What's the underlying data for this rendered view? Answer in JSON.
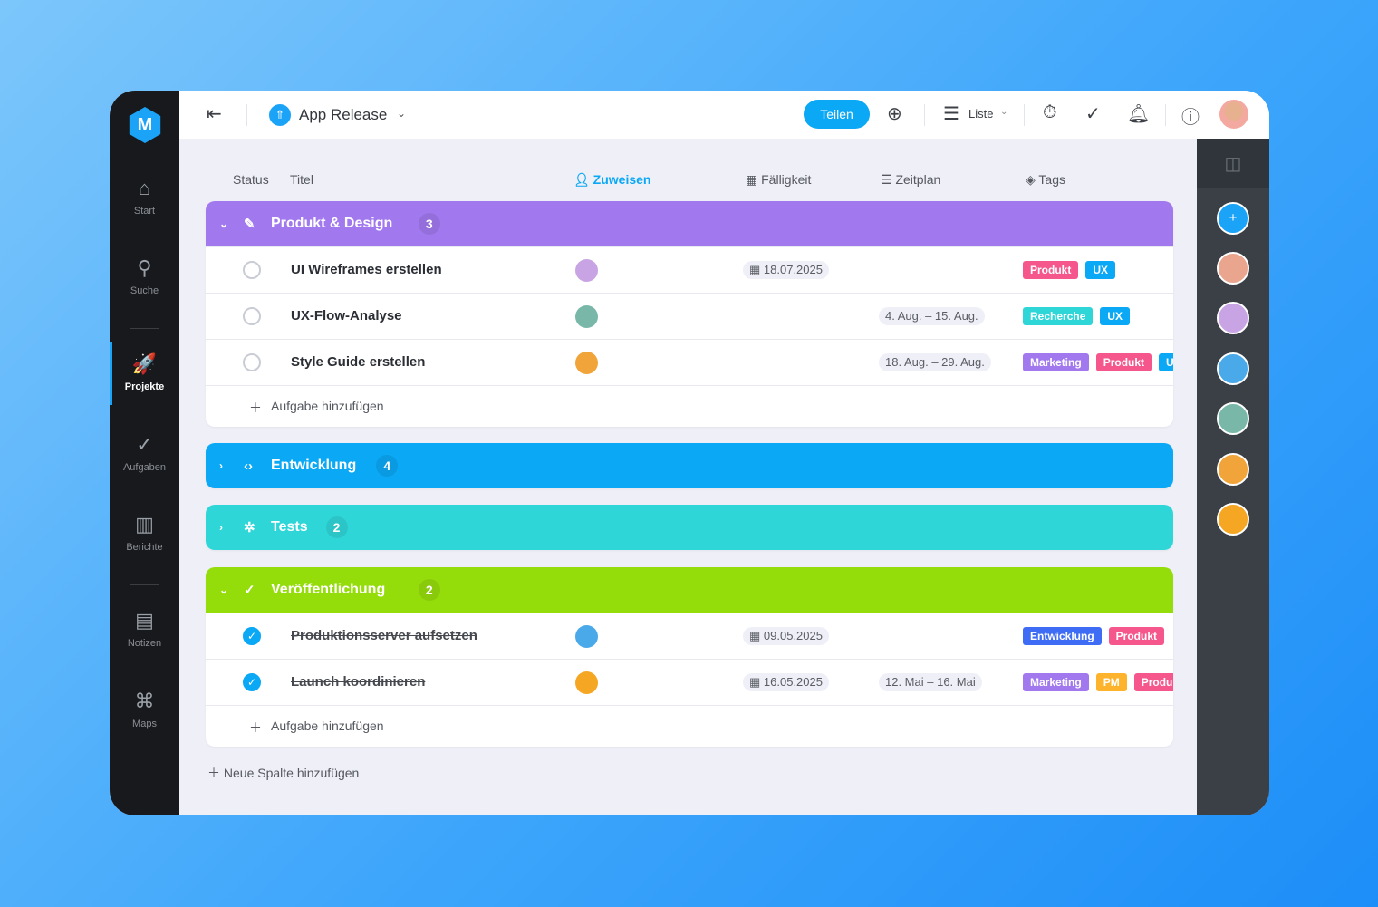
{
  "sidebar": {
    "logo": "M",
    "items": [
      {
        "label": "Start",
        "icon": "⌂"
      },
      {
        "label": "Suche",
        "icon": "⚲"
      },
      {
        "label": "Projekte",
        "icon": "🚀"
      },
      {
        "label": "Aufgaben",
        "icon": "✓"
      },
      {
        "label": "Berichte",
        "icon": "▥"
      },
      {
        "label": "Notizen",
        "icon": "▤"
      },
      {
        "label": "Maps",
        "icon": "⌘"
      }
    ]
  },
  "header": {
    "project": "App Release",
    "share": "Teilen",
    "view": "Liste"
  },
  "columns": {
    "status": "Status",
    "title": "Titel",
    "assign": "Zuweisen",
    "due": "Fälligkeit",
    "schedule": "Zeitplan",
    "tags": "Tags"
  },
  "groups": [
    {
      "name": "Produkt & Design",
      "count": "3",
      "color": "#a178ee",
      "expanded": true,
      "tasks": [
        {
          "title": "UI Wireframes erstellen",
          "done": false,
          "due": "18.07.2025",
          "schedule": "",
          "tags": [
            {
              "label": "Produkt",
              "color": "#f5578d"
            },
            {
              "label": "UX",
              "color": "#0aa8f5"
            }
          ]
        },
        {
          "title": "UX-Flow-Analyse",
          "done": false,
          "due": "",
          "schedule": "4. Aug. – 15. Aug.",
          "tags": [
            {
              "label": "Recherche",
              "color": "#2fd6d8"
            },
            {
              "label": "UX",
              "color": "#0aa8f5"
            }
          ]
        },
        {
          "title": "Style Guide erstellen",
          "done": false,
          "due": "",
          "schedule": "18. Aug. – 29. Aug.",
          "tags": [
            {
              "label": "Marketing",
              "color": "#a178ee"
            },
            {
              "label": "Produkt",
              "color": "#f5578d"
            },
            {
              "label": "UX",
              "color": "#0aa8f5"
            }
          ]
        }
      ],
      "add": "Aufgabe hinzufügen"
    },
    {
      "name": "Entwicklung",
      "count": "4",
      "color": "#0aa8f5",
      "expanded": false
    },
    {
      "name": "Tests",
      "count": "2",
      "color": "#2fd6d8",
      "expanded": false
    },
    {
      "name": "Veröffentlichung",
      "count": "2",
      "color": "#95dc0b",
      "expanded": true,
      "tasks": [
        {
          "title": "Produktionsserver aufsetzen",
          "done": true,
          "due": "09.05.2025",
          "schedule": "",
          "tags": [
            {
              "label": "Entwicklung",
              "color": "#3e6cf5"
            },
            {
              "label": "Produkt",
              "color": "#f5578d"
            }
          ]
        },
        {
          "title": "Launch koordinieren",
          "done": true,
          "due": "16.05.2025",
          "schedule": "12. Mai – 16. Mai",
          "tags": [
            {
              "label": "Marketing",
              "color": "#a178ee"
            },
            {
              "label": "PM",
              "color": "#fdb32b"
            },
            {
              "label": "Produkt",
              "color": "#f5578d"
            }
          ]
        }
      ],
      "add": "Aufgabe hinzufügen"
    }
  ],
  "new_column": "Neue Spalte hinzufügen"
}
